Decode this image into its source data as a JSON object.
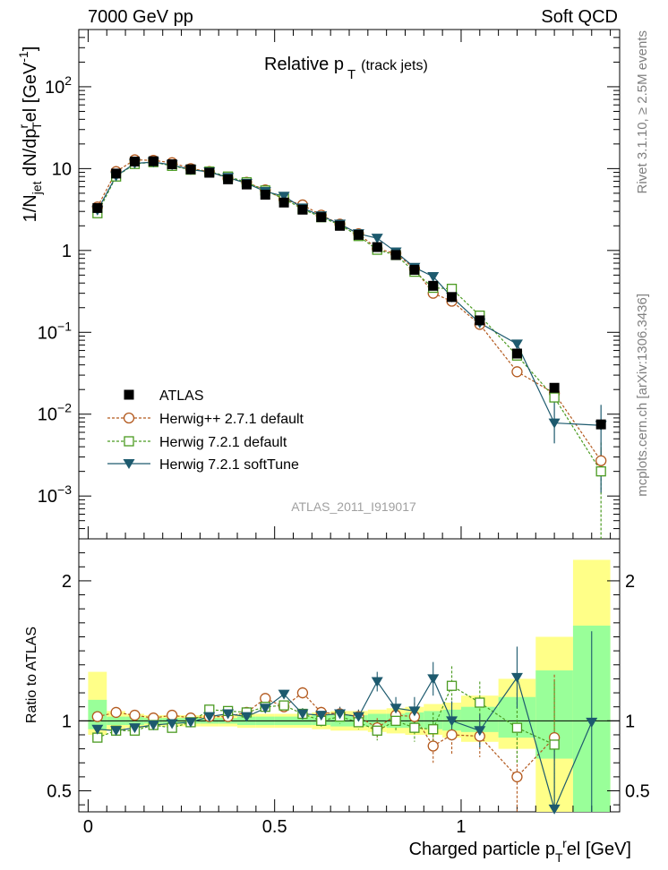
{
  "header": {
    "left": "7000 GeV pp",
    "right": "Soft QCD"
  },
  "title": {
    "main": "Relative p",
    "sub": "T",
    "suffix": "(track jets)"
  },
  "side_text": {
    "top": "Rivet 3.1.10, ≥ 2.5M events",
    "bottom": "mcplots.cern.ch [arXiv:1306.3436]"
  },
  "watermark": "ATLAS_2011_I919017",
  "legend": [
    "ATLAS",
    "Herwig++ 2.7.1 default",
    "Herwig 7.2.1 default",
    "Herwig 7.2.1 softTune"
  ],
  "colors": {
    "data": "#000000",
    "herwigpp": "#b35a1f",
    "h721": "#4a9a20",
    "soft": "#1d5a6e",
    "band_yellow": "#ffff88",
    "band_green": "#99ff99"
  },
  "chart_data": [
    {
      "type": "scatter",
      "scale": "log",
      "ylabel_parts": {
        "a": "1/N",
        "b": "jet",
        "c": " dN/dp",
        "d": "r",
        "e": "T",
        "f": "el [GeV",
        "g": "-1",
        "h": "]"
      },
      "ylim": [
        0.0003,
        500
      ],
      "xlim": [
        -0.025,
        1.425
      ],
      "y_ticks": [
        {
          "v": 100,
          "base": "10",
          "exp": "2"
        },
        {
          "v": 10,
          "base": "10",
          "exp": ""
        },
        {
          "v": 1,
          "base": "1",
          "exp": ""
        },
        {
          "v": 0.1,
          "base": "10",
          "exp": "−1"
        },
        {
          "v": 0.01,
          "base": "10",
          "exp": "−2"
        },
        {
          "v": 0.001,
          "base": "10",
          "exp": "−3"
        }
      ],
      "x": [
        0.025,
        0.075,
        0.125,
        0.175,
        0.225,
        0.275,
        0.325,
        0.375,
        0.425,
        0.475,
        0.525,
        0.575,
        0.625,
        0.675,
        0.725,
        0.775,
        0.825,
        0.875,
        0.925,
        0.975,
        1.05,
        1.15,
        1.25,
        1.375
      ],
      "series": [
        {
          "name": "ATLAS",
          "marker": "square",
          "values": [
            3.3,
            8.7,
            12.2,
            12.3,
            11.3,
            9.8,
            8.9,
            7.4,
            6.4,
            4.8,
            3.85,
            3.15,
            2.55,
            2.0,
            1.55,
            1.1,
            0.88,
            0.58,
            0.37,
            0.27,
            0.14,
            0.055,
            0.021,
            0.0075
          ]
        },
        {
          "name": "Herwig++ 2.7.1 default",
          "marker": "circle",
          "values": [
            3.4,
            9.2,
            12.8,
            12.6,
            11.8,
            10.0,
            9.2,
            7.6,
            6.8,
            5.5,
            4.2,
            3.6,
            2.7,
            2.1,
            1.6,
            1.05,
            0.92,
            0.6,
            0.3,
            0.24,
            0.125,
            0.033,
            0.018,
            0.0027
          ]
        },
        {
          "name": "Herwig 7.2.1 default",
          "marker": "open-square",
          "values": [
            2.85,
            8.0,
            11.4,
            12.0,
            10.8,
            9.7,
            9.2,
            8.0,
            6.8,
            5.4,
            4.3,
            3.2,
            2.55,
            2.05,
            1.5,
            1.02,
            0.88,
            0.55,
            0.35,
            0.34,
            0.16,
            0.052,
            0.016,
            0.002
          ]
        },
        {
          "name": "Herwig 7.2.1 softTune",
          "marker": "triangle-down",
          "values": [
            3.1,
            8.1,
            11.6,
            12.0,
            11.1,
            9.7,
            9.1,
            7.8,
            6.6,
            5.25,
            4.6,
            3.3,
            2.65,
            2.1,
            1.6,
            1.41,
            0.96,
            0.62,
            0.48,
            0.27,
            0.13,
            0.072,
            0.0078,
            0.0073
          ]
        }
      ]
    },
    {
      "type": "scatter",
      "ylabel": "Ratio to ATLAS",
      "xlabel_parts": {
        "a": "Charged particle p",
        "b": "T",
        "c": "r",
        "d": "el [GeV]"
      },
      "ylim": [
        0.35,
        2.3
      ],
      "xlim": [
        -0.025,
        1.425
      ],
      "y_ticks": [
        "0.5",
        "1",
        "2"
      ],
      "x_ticks": [
        "0",
        "0.5",
        "1"
      ],
      "bins": [
        [
          0.0,
          0.05
        ],
        [
          0.05,
          0.1
        ],
        [
          0.1,
          0.15
        ],
        [
          0.15,
          0.2
        ],
        [
          0.2,
          0.25
        ],
        [
          0.25,
          0.3
        ],
        [
          0.3,
          0.35
        ],
        [
          0.35,
          0.4
        ],
        [
          0.4,
          0.45
        ],
        [
          0.45,
          0.5
        ],
        [
          0.5,
          0.55
        ],
        [
          0.55,
          0.6
        ],
        [
          0.6,
          0.65
        ],
        [
          0.65,
          0.7
        ],
        [
          0.7,
          0.75
        ],
        [
          0.75,
          0.8
        ],
        [
          0.8,
          0.85
        ],
        [
          0.85,
          0.9
        ],
        [
          0.9,
          0.95
        ],
        [
          0.95,
          1.0
        ],
        [
          1.0,
          1.1
        ],
        [
          1.1,
          1.2
        ],
        [
          1.2,
          1.3
        ],
        [
          1.3,
          1.4
        ]
      ],
      "band_yellow": [
        [
          0.9,
          1.35
        ],
        [
          0.93,
          1.07
        ],
        [
          0.95,
          1.05
        ],
        [
          0.96,
          1.04
        ],
        [
          0.96,
          1.04
        ],
        [
          0.96,
          1.04
        ],
        [
          0.96,
          1.04
        ],
        [
          0.96,
          1.04
        ],
        [
          0.95,
          1.05
        ],
        [
          0.95,
          1.05
        ],
        [
          0.95,
          1.05
        ],
        [
          0.95,
          1.05
        ],
        [
          0.94,
          1.06
        ],
        [
          0.93,
          1.07
        ],
        [
          0.93,
          1.07
        ],
        [
          0.92,
          1.08
        ],
        [
          0.91,
          1.09
        ],
        [
          0.9,
          1.1
        ],
        [
          0.9,
          1.12
        ],
        [
          0.88,
          1.13
        ],
        [
          0.85,
          1.18
        ],
        [
          0.8,
          1.3
        ],
        [
          0.35,
          1.6
        ],
        [
          0.35,
          2.15
        ]
      ],
      "band_green": [
        [
          0.94,
          1.15
        ],
        [
          0.97,
          1.03
        ],
        [
          0.97,
          1.03
        ],
        [
          0.98,
          1.02
        ],
        [
          0.98,
          1.02
        ],
        [
          0.98,
          1.02
        ],
        [
          0.98,
          1.02
        ],
        [
          0.98,
          1.02
        ],
        [
          0.97,
          1.03
        ],
        [
          0.97,
          1.03
        ],
        [
          0.97,
          1.03
        ],
        [
          0.97,
          1.03
        ],
        [
          0.97,
          1.04
        ],
        [
          0.96,
          1.04
        ],
        [
          0.96,
          1.04
        ],
        [
          0.96,
          1.05
        ],
        [
          0.95,
          1.05
        ],
        [
          0.95,
          1.06
        ],
        [
          0.94,
          1.07
        ],
        [
          0.93,
          1.08
        ],
        [
          0.92,
          1.1
        ],
        [
          0.88,
          1.17
        ],
        [
          0.73,
          1.36
        ],
        [
          0.35,
          1.68
        ]
      ],
      "series": [
        {
          "name": "Herwig++ 2.7.1 default",
          "values": [
            1.03,
            1.06,
            1.04,
            1.02,
            1.04,
            1.02,
            1.03,
            1.03,
            1.06,
            1.16,
            1.1,
            1.2,
            1.06,
            1.05,
            1.03,
            0.95,
            1.04,
            1.03,
            0.82,
            0.9,
            0.89,
            0.6,
            0.88,
            null
          ],
          "err": [
            0.02,
            0.02,
            0.02,
            0.02,
            0.02,
            0.02,
            0.02,
            0.03,
            0.03,
            0.03,
            0.03,
            0.04,
            0.04,
            0.05,
            0.05,
            0.07,
            0.08,
            0.1,
            0.12,
            0.14,
            0.15,
            0.25,
            0.45,
            0
          ]
        },
        {
          "name": "Herwig 7.2.1 default",
          "values": [
            0.88,
            0.93,
            0.93,
            0.97,
            0.95,
            0.99,
            1.08,
            1.07,
            1.06,
            1.1,
            1.11,
            1.05,
            1.0,
            1.03,
            0.99,
            0.93,
            1.0,
            0.95,
            0.94,
            1.25,
            1.13,
            0.95,
            0.83,
            null
          ],
          "err": [
            0.02,
            0.02,
            0.02,
            0.02,
            0.02,
            0.02,
            0.02,
            0.03,
            0.03,
            0.03,
            0.03,
            0.04,
            0.04,
            0.05,
            0.05,
            0.07,
            0.08,
            0.1,
            0.12,
            0.14,
            0.15,
            0.25,
            0.45,
            0
          ]
        },
        {
          "name": "Herwig 7.2.1 softTune",
          "values": [
            0.94,
            0.93,
            0.95,
            0.97,
            0.98,
            0.99,
            1.03,
            1.05,
            1.03,
            1.09,
            1.19,
            1.05,
            1.04,
            1.05,
            1.03,
            1.28,
            1.09,
            1.07,
            1.3,
            1.0,
            0.93,
            1.31,
            0.37,
            0.99
          ],
          "err": [
            0.02,
            0.02,
            0.02,
            0.02,
            0.02,
            0.02,
            0.02,
            0.03,
            0.03,
            0.03,
            0.03,
            0.04,
            0.04,
            0.05,
            0.05,
            0.07,
            0.08,
            0.1,
            0.12,
            0.14,
            0.12,
            0.22,
            0.5,
            0.65
          ]
        }
      ]
    }
  ]
}
